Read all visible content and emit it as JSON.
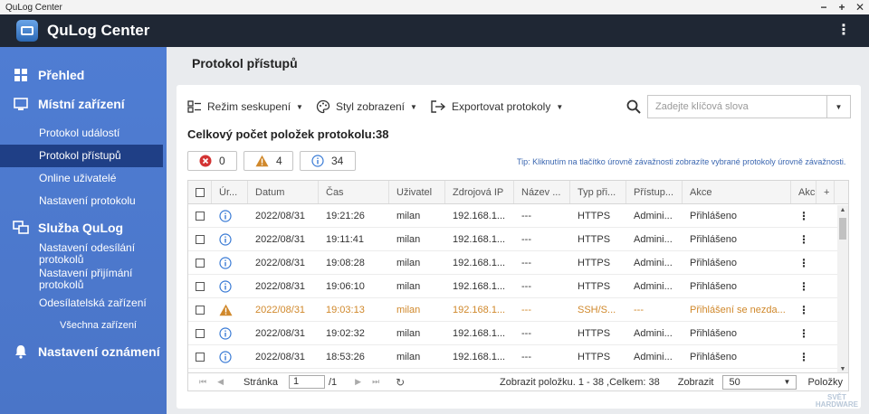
{
  "window": {
    "title": "QuLog Center"
  },
  "header": {
    "title": "QuLog Center"
  },
  "sidebar": {
    "overview": "Přehled",
    "local_devices": "Místní zařízení",
    "event_log": "Protokol událostí",
    "access_log": "Protokol přístupů",
    "online_users": "Online uživatelé",
    "log_settings": "Nastavení protokolu",
    "qulog_service": "Služba QuLog",
    "sender_settings": [
      "Nastavení odesílání",
      "protokolů"
    ],
    "receiver_settings": [
      "Nastavení přijímání",
      "protokolů"
    ],
    "sender_devices": "Odesílatelská zařízení",
    "all_devices": "Všechna zařízení",
    "notification_settings": "Nastavení oznámení"
  },
  "main": {
    "title": "Protokol přístupů",
    "toolbar": {
      "group_mode": "Režim seskupení",
      "display_style": "Styl zobrazení",
      "export": "Exportovat protokoly"
    },
    "search": {
      "placeholder": "Zadejte klíčová slova"
    },
    "total": "Celkový počet položek protokolu:38",
    "severity": {
      "error": "0",
      "warning": "4",
      "info": "34"
    },
    "tip": "Tip: Kliknutím na tlačítko úrovně závažnosti zobrazíte vybrané protokoly úrovně závažnosti.",
    "columns": [
      "Úr...",
      "Datum",
      "Čas",
      "Uživatel",
      "Zdrojová IP",
      "Název ...",
      "Typ při...",
      "Přístup...",
      "Akce",
      "Akc",
      "+"
    ],
    "rows": [
      {
        "level": "info",
        "date": "2022/08/31",
        "time": "19:21:26",
        "user": "milan",
        "ip": "192.168.1...",
        "name": "---",
        "type": "HTTPS",
        "access": "Admini...",
        "action": "Přihlášeno"
      },
      {
        "level": "info",
        "date": "2022/08/31",
        "time": "19:11:41",
        "user": "milan",
        "ip": "192.168.1...",
        "name": "---",
        "type": "HTTPS",
        "access": "Admini...",
        "action": "Přihlášeno"
      },
      {
        "level": "info",
        "date": "2022/08/31",
        "time": "19:08:28",
        "user": "milan",
        "ip": "192.168.1...",
        "name": "---",
        "type": "HTTPS",
        "access": "Admini...",
        "action": "Přihlášeno"
      },
      {
        "level": "info",
        "date": "2022/08/31",
        "time": "19:06:10",
        "user": "milan",
        "ip": "192.168.1...",
        "name": "---",
        "type": "HTTPS",
        "access": "Admini...",
        "action": "Přihlášeno"
      },
      {
        "level": "warning",
        "date": "2022/08/31",
        "time": "19:03:13",
        "user": "milan",
        "ip": "192.168.1...",
        "name": "---",
        "type": "SSH/S...",
        "access": "---",
        "action": "Přihlášení se nezda..."
      },
      {
        "level": "info",
        "date": "2022/08/31",
        "time": "19:02:32",
        "user": "milan",
        "ip": "192.168.1...",
        "name": "---",
        "type": "HTTPS",
        "access": "Admini...",
        "action": "Přihlášeno"
      },
      {
        "level": "info",
        "date": "2022/08/31",
        "time": "18:53:26",
        "user": "milan",
        "ip": "192.168.1...",
        "name": "---",
        "type": "HTTPS",
        "access": "Admini...",
        "action": "Přihlášeno"
      }
    ],
    "pager": {
      "page_label": "Stránka",
      "page_value": "1",
      "page_total": "/1",
      "showing": "Zobrazit položku. 1 - 38 ,Celkem: 38",
      "show_label": "Zobrazit",
      "page_size": "50",
      "items_label": "Položky"
    },
    "watermark": [
      "SVĚT",
      "HARDWARE"
    ]
  },
  "colors": {
    "sidebar": "#4a75c8",
    "active": "#1f3f86",
    "header": "#1f2734",
    "warning": "#d0882b",
    "info": "#3a7bd5",
    "error": "#d33333"
  }
}
